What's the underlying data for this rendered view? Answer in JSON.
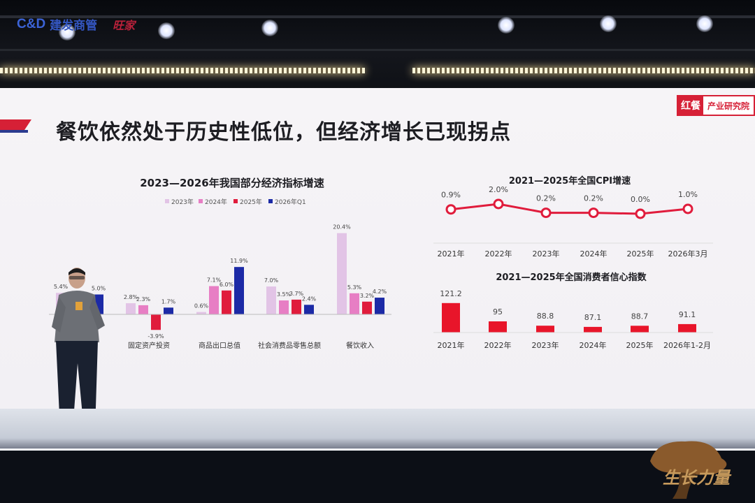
{
  "brand": {
    "logo": "C&D",
    "name": "建发商管",
    "script": "旺家"
  },
  "slide": {
    "title": "餐饮依然处于历史性低位，但经济增长已现拐点",
    "tag_a": "红餐",
    "tag_b": "产业研究院"
  },
  "colors": {
    "y2023": "#e2c4e6",
    "y2024": "#e77ec4",
    "y2025": "#e01c3c",
    "y2026q1": "#1c2aa6",
    "cpi_line": "#e01c3c",
    "confidence_bar": "#e8152a"
  },
  "chart_data": [
    {
      "type": "bar",
      "title": "2023—2026年我国部分经济指标增速",
      "categories": [
        "",
        "固定资产投资",
        "商品出口总值",
        "社会消费品零售总额",
        "餐饮收入"
      ],
      "series": [
        {
          "name": "2023年",
          "values": [
            5.4,
            2.8,
            0.6,
            7.0,
            20.4
          ]
        },
        {
          "name": "2024年",
          "values": [
            5.0,
            2.3,
            7.1,
            3.5,
            5.3
          ]
        },
        {
          "name": "2025年",
          "values": [
            5.0,
            -3.9,
            6.0,
            3.7,
            3.2
          ]
        },
        {
          "name": "2026年Q1",
          "values": [
            5.0,
            1.7,
            11.9,
            2.4,
            4.2
          ]
        }
      ],
      "data_labels": [
        [
          "5.4%",
          "",
          "",
          "5.0%"
        ],
        [
          "2.8%",
          "2.3%",
          "-3.9%",
          "1.7%"
        ],
        [
          "0.6%",
          "7.1%",
          "6.0%",
          "11.9%"
        ],
        [
          "7.0%",
          "3.5%",
          "3.7%",
          "2.4%"
        ],
        [
          "20.4%",
          "5.3%",
          "3.2%",
          "4.2%"
        ]
      ],
      "legend_placement": "top",
      "grid": false
    },
    {
      "type": "line",
      "title": "2021—2025年全国CPI增速",
      "x": [
        "2021年",
        "2022年",
        "2023年",
        "2024年",
        "2025年",
        "2026年3月"
      ],
      "y": [
        0.9,
        2.0,
        0.2,
        0.2,
        0.0,
        1.0
      ],
      "data_labels": [
        "0.9%",
        "2.0%",
        "0.2%",
        "0.2%",
        "0.0%",
        "1.0%"
      ],
      "grid": false
    },
    {
      "type": "bar",
      "title": "2021—2025年全国消费者信心指数",
      "categories": [
        "2021年",
        "2022年",
        "2023年",
        "2024年",
        "2025年",
        "2026年1-2月"
      ],
      "values": [
        121.2,
        95,
        88.8,
        87.1,
        88.7,
        91.1
      ],
      "data_labels": [
        "121.2",
        "95",
        "88.8",
        "87.1",
        "88.7",
        "91.1"
      ],
      "grid": false
    }
  ],
  "watermark": {
    "text": "生长力量"
  }
}
